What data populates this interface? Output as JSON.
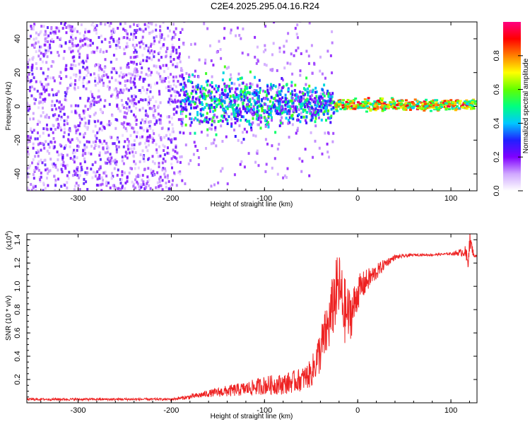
{
  "title": "C2E4.2025.295.04.16.R24",
  "chart_data": [
    {
      "type": "heatmap",
      "name": "spectrogram",
      "xlabel": "Height of straight line (km)",
      "ylabel": "Frequency (Hz)",
      "xlim": [
        -355,
        128
      ],
      "ylim": [
        -50,
        50
      ],
      "xticks": [
        -300,
        -200,
        -100,
        0,
        100
      ],
      "xtick_labels": [
        "-300",
        "-200",
        "-100",
        "0",
        "100"
      ],
      "yticks": [
        -40,
        -20,
        0,
        20,
        40
      ],
      "ytick_labels": [
        "-40",
        "-20",
        "0",
        "20",
        "40"
      ],
      "colorbar": {
        "label": "Normalized spectral amplitude",
        "range": [
          0,
          1
        ],
        "ticks": [
          0.0,
          0.2,
          0.4,
          0.6,
          0.8
        ],
        "tick_labels": [
          "0.0",
          "0.2",
          "0.4",
          "0.6",
          "0.8"
        ],
        "colors": [
          "#ffffff",
          "#d0a8ff",
          "#8000ff",
          "#2020ff",
          "#00c8ff",
          "#00ff80",
          "#60ff00",
          "#ffff00",
          "#ff8000",
          "#ff0000",
          "#ff0080"
        ]
      },
      "regions": [
        {
          "x": [
            -355,
            -190
          ],
          "freq_center": 0,
          "freq_spread": 50,
          "amplitude": 0.15,
          "description": "broadband noise"
        },
        {
          "x": [
            -190,
            -25
          ],
          "freq_center": 3,
          "freq_spread": 10,
          "amplitude": 0.35,
          "description": "converging band"
        },
        {
          "x": [
            -25,
            128
          ],
          "freq_center": 1,
          "freq_spread": 2,
          "amplitude": 0.8,
          "description": "narrow carrier line"
        }
      ]
    },
    {
      "type": "line",
      "name": "snr",
      "xlabel": "Height of straight line (km)",
      "ylabel": "SNR (10 * v/v)",
      "y_multiplier": "(x10",
      "y_exponent": "4",
      "y_multiplier_close": ")",
      "xlim": [
        -355,
        128
      ],
      "ylim": [
        0,
        1.45
      ],
      "xticks": [
        -300,
        -200,
        -100,
        0,
        100
      ],
      "xtick_labels": [
        "-300",
        "-200",
        "-100",
        "0",
        "100"
      ],
      "yticks": [
        0.2,
        0.4,
        0.6,
        0.8,
        1.0,
        1.2,
        1.4
      ],
      "ytick_labels": [
        "0.2",
        "0.4",
        "0.6",
        "0.8",
        "1.0",
        "1.2",
        "1.4"
      ],
      "color": "#ee2222",
      "x": [
        -355,
        -300,
        -250,
        -200,
        -180,
        -160,
        -140,
        -120,
        -100,
        -80,
        -60,
        -50,
        -40,
        -30,
        -25,
        -20,
        -15,
        -10,
        -5,
        0,
        10,
        20,
        30,
        40,
        60,
        80,
        100,
        110,
        115,
        118,
        120,
        125,
        128
      ],
      "y": [
        0.03,
        0.03,
        0.03,
        0.03,
        0.05,
        0.08,
        0.1,
        0.12,
        0.15,
        0.16,
        0.2,
        0.25,
        0.45,
        0.7,
        0.9,
        1.0,
        0.8,
        0.75,
        0.8,
        0.95,
        1.05,
        1.12,
        1.2,
        1.25,
        1.27,
        1.27,
        1.28,
        1.29,
        1.3,
        1.2,
        1.4,
        1.26,
        1.26
      ],
      "noise": [
        0.01,
        0.01,
        0.01,
        0.01,
        0.02,
        0.03,
        0.05,
        0.06,
        0.08,
        0.09,
        0.1,
        0.12,
        0.2,
        0.25,
        0.3,
        0.3,
        0.3,
        0.25,
        0.2,
        0.15,
        0.1,
        0.07,
        0.04,
        0.02,
        0.01,
        0.01,
        0.01,
        0.03,
        0.05,
        0.1,
        0.1,
        0.01,
        0.01
      ]
    }
  ]
}
